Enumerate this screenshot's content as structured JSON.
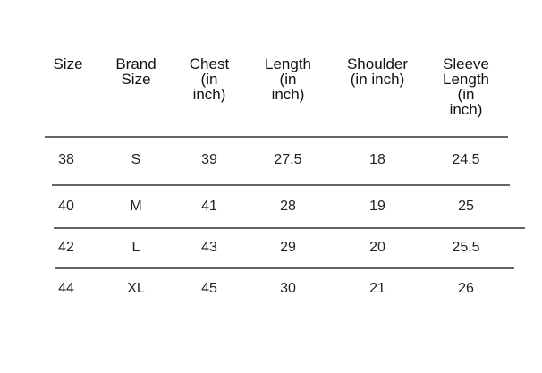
{
  "table": {
    "headers": [
      [
        "Size"
      ],
      [
        "Brand",
        "Size"
      ],
      [
        "Chest",
        "(in",
        "inch)"
      ],
      [
        "Length",
        "(in",
        "inch)"
      ],
      [
        "Shoulder",
        "(in inch)"
      ],
      [
        "Sleeve",
        "Length",
        "(in",
        "inch)"
      ]
    ],
    "rows": [
      [
        "38",
        "S",
        "39",
        "27.5",
        "18",
        "24.5"
      ],
      [
        "40",
        "M",
        "41",
        "28",
        "19",
        "25"
      ],
      [
        "42",
        "L",
        "43",
        "29",
        "20",
        "25.5"
      ],
      [
        "44",
        "XL",
        "45",
        "30",
        "21",
        "26"
      ]
    ]
  }
}
